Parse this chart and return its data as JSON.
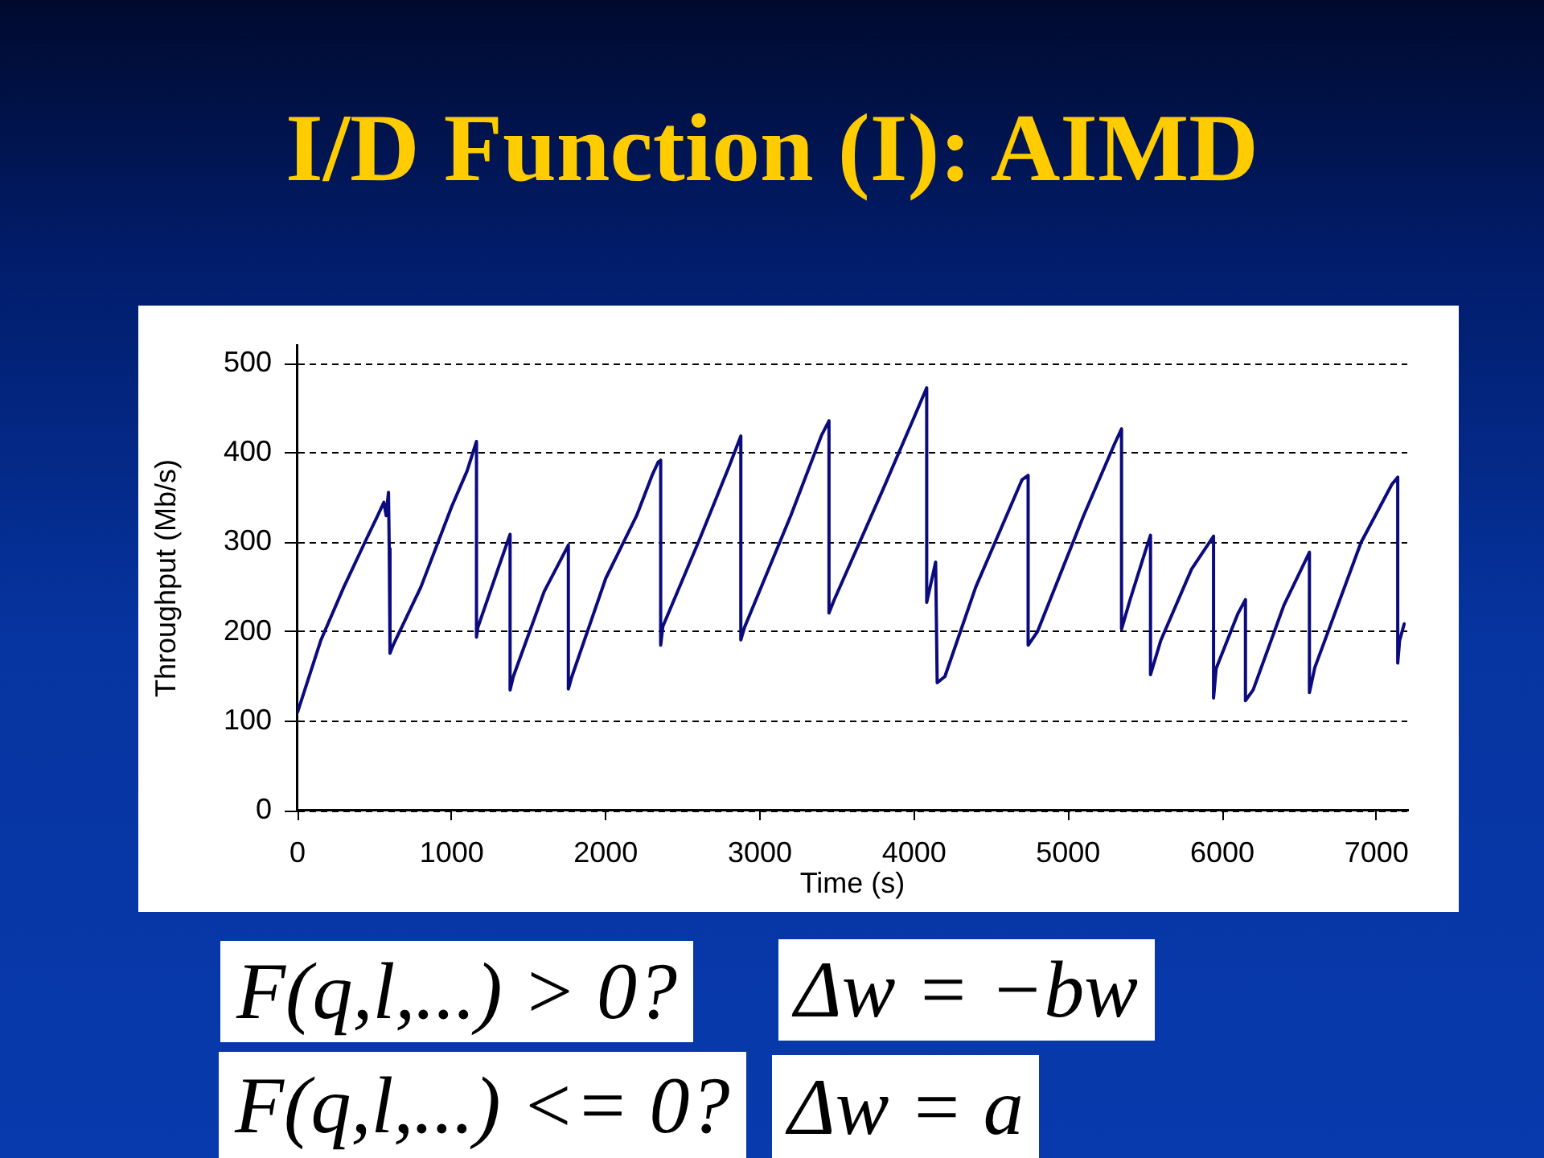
{
  "chart_data": {
    "type": "line",
    "title": "I/D Function (I): AIMD",
    "xlabel": "Time (s)",
    "ylabel": "Throughput (Mb/s)",
    "x": [
      0,
      150,
      300,
      450,
      520,
      560,
      575,
      590,
      595,
      600,
      620,
      800,
      1000,
      1100,
      1161,
      1161,
      1170,
      1300,
      1379,
      1379,
      1400,
      1600,
      1757,
      1757,
      1780,
      2000,
      2200,
      2300,
      2340,
      2356,
      2356,
      2370,
      2600,
      2800,
      2876,
      2876,
      2900,
      3200,
      3400,
      3448,
      3448,
      3480,
      3800,
      4000,
      4082,
      4082,
      4140,
      4150,
      4200,
      4400,
      4600,
      4700,
      4740,
      4740,
      4800,
      5100,
      5300,
      5346,
      5346,
      5400,
      5500,
      5534,
      5534,
      5600,
      5800,
      5943,
      5943,
      5960,
      6100,
      6150,
      6150,
      6200,
      6400,
      6565,
      6565,
      6600,
      6900,
      7100,
      7138,
      7138,
      7150,
      7180
    ],
    "values": [
      110,
      190,
      250,
      305,
      330,
      345,
      330,
      356,
      293,
      176,
      185,
      250,
      340,
      380,
      413,
      194,
      205,
      270,
      309,
      135,
      150,
      245,
      297,
      136,
      150,
      260,
      330,
      375,
      390,
      392,
      185,
      206,
      300,
      385,
      419,
      191,
      205,
      330,
      420,
      436,
      221,
      235,
      360,
      440,
      473,
      233,
      278,
      143,
      150,
      250,
      330,
      370,
      375,
      185,
      200,
      330,
      410,
      427,
      203,
      235,
      290,
      308,
      152,
      190,
      270,
      307,
      126,
      159,
      220,
      236,
      123,
      135,
      230,
      289,
      132,
      160,
      300,
      365,
      373,
      165,
      190,
      209
    ],
    "color": "#0b0b7e",
    "xlim": [
      0,
      7200
    ],
    "ylim": [
      0,
      520
    ],
    "xticks": [
      0,
      1000,
      2000,
      3000,
      4000,
      5000,
      6000,
      7000
    ],
    "yticks": [
      0,
      100,
      200,
      300,
      400,
      500
    ],
    "grid": "y",
    "marker": "none",
    "line_style": "solid",
    "annotations": [
      "F(q,l,...) > 0?",
      "Δw = −bw",
      "F(q,l,...) <= 0?",
      "Δw = a"
    ]
  }
}
